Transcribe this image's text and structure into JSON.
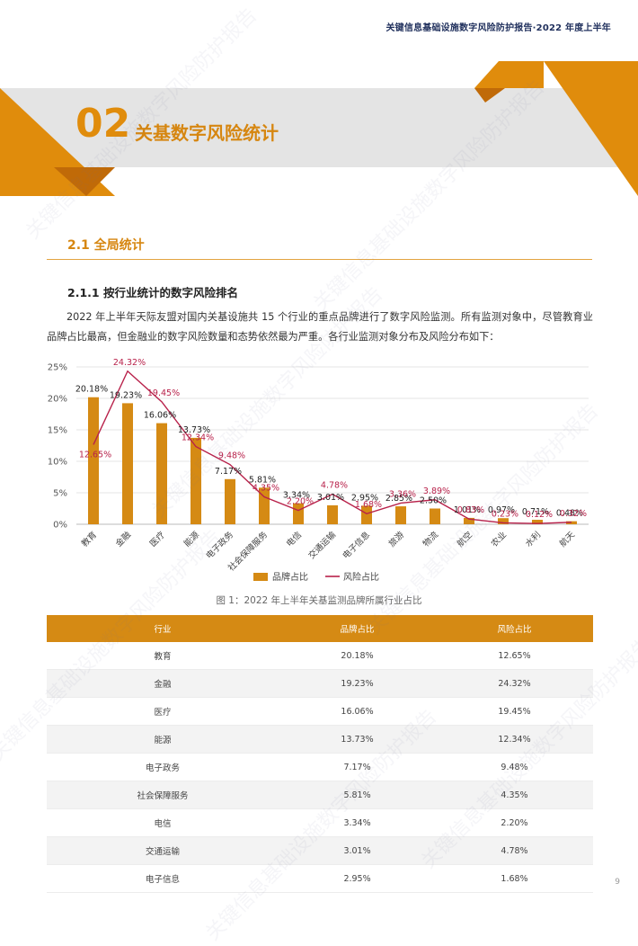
{
  "header": {
    "title": "关键信息基础设施数字风险防护报告·2022 年度上半年"
  },
  "section": {
    "number": "02",
    "title": "关基数字风险统计"
  },
  "subsection": {
    "title": "2.1 全局统计"
  },
  "subsubsection": {
    "title": "2.1.1 按行业统计的数字风险排名"
  },
  "paragraph": "2022 年上半年天际友盟对国内关基设施共 15 个行业的重点品牌进行了数字风险监测。所有监测对象中，尽管教育业品牌占比最高，但金融业的数字风险数量和态势依然最为严重。各行业监测对象分布及风险分布如下：",
  "chart_data": {
    "type": "bar",
    "categories": [
      "教育",
      "金融",
      "医疗",
      "能源",
      "电子政务",
      "社会保障服务",
      "电信",
      "交通运输",
      "电子信息",
      "旅游",
      "物流",
      "航空",
      "农业",
      "水利",
      "航天"
    ],
    "series": [
      {
        "name": "品牌占比",
        "type": "bar",
        "color": "#d58a14",
        "values": [
          20.18,
          19.23,
          16.06,
          13.73,
          7.17,
          5.81,
          3.34,
          3.01,
          2.95,
          2.85,
          2.5,
          1.01,
          0.97,
          0.71,
          0.48
        ],
        "labels": [
          "20.18%",
          "19.23%",
          "16.06%",
          "13.73%",
          "7.17%",
          "5.81%",
          "3.34%",
          "3.01%",
          "2.95%",
          "2.85%",
          "2.50%",
          "1.01%",
          "0.97%",
          "0.71%",
          "0.48%"
        ]
      },
      {
        "name": "风险占比",
        "type": "line",
        "color": "#b8214a",
        "values": [
          12.65,
          24.32,
          19.45,
          12.34,
          9.48,
          4.35,
          2.2,
          4.78,
          1.68,
          3.36,
          3.89,
          0.83,
          0.23,
          0.12,
          0.32
        ],
        "labels": [
          "12.65%",
          "24.32%",
          "19.45%",
          "12.34%",
          "9.48%",
          "4.35%",
          "2.20%",
          "4.78%",
          "1.68%",
          "3.36%",
          "3.89%",
          "0.83%",
          "0.23%",
          "0.12%",
          "0.32%"
        ]
      }
    ],
    "ylim": [
      0,
      25
    ],
    "yticks": [
      "0%",
      "5%",
      "10%",
      "15%",
      "20%",
      "25%"
    ],
    "grid": true,
    "legend": "bottom"
  },
  "figure": {
    "caption": "图 1：2022 年上半年关基监测品牌所属行业占比"
  },
  "table": {
    "headers": [
      "行业",
      "品牌占比",
      "风险占比"
    ],
    "rows": [
      [
        "教育",
        "20.18%",
        "12.65%"
      ],
      [
        "金融",
        "19.23%",
        "24.32%"
      ],
      [
        "医疗",
        "16.06%",
        "19.45%"
      ],
      [
        "能源",
        "13.73%",
        "12.34%"
      ],
      [
        "电子政务",
        "7.17%",
        "9.48%"
      ],
      [
        "社会保障服务",
        "5.81%",
        "4.35%"
      ],
      [
        "电信",
        "3.34%",
        "2.20%"
      ],
      [
        "交通运输",
        "3.01%",
        "4.78%"
      ],
      [
        "电子信息",
        "2.95%",
        "1.68%"
      ]
    ]
  },
  "page": {
    "number": "9"
  },
  "watermark": {
    "text": "关键信息基础设施数字风险防护报告"
  },
  "colors": {
    "accent": "#d58a14",
    "line": "#b8214a",
    "navy": "#1f2f5c"
  }
}
